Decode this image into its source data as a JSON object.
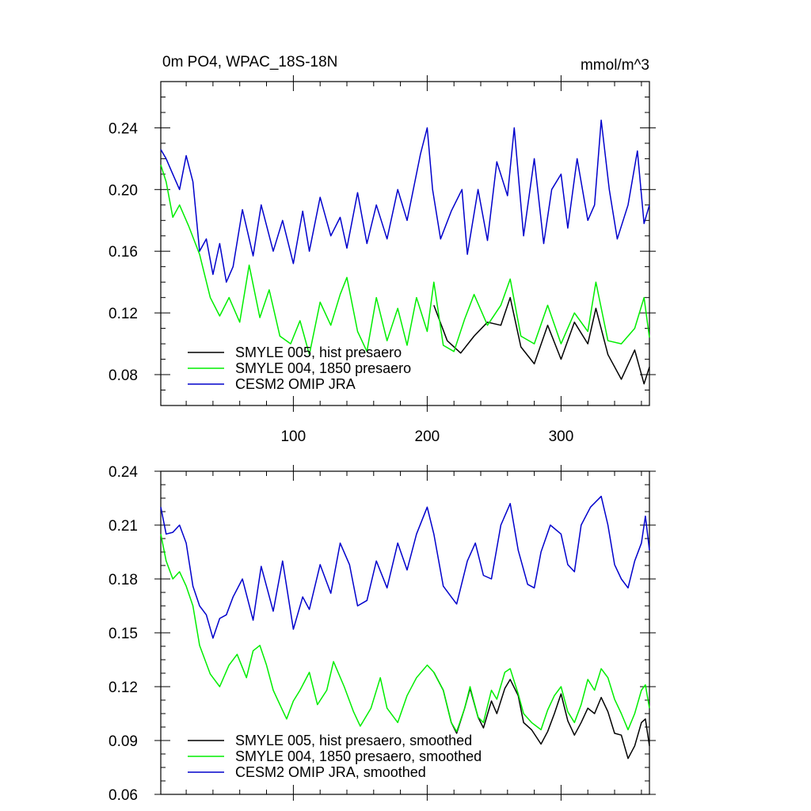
{
  "colors": {
    "black": "#000000",
    "green": "#00ee00",
    "blue": "#0000cc"
  },
  "chart_data": [
    {
      "type": "line",
      "title_left": "0m PO4, WPAC_18S-18N",
      "title_right": "mmol/m^3",
      "xlim": [
        1,
        366
      ],
      "ylim": [
        0.06,
        0.27
      ],
      "xticks": [
        100,
        200,
        300
      ],
      "xtick_labels": [
        "100",
        "200",
        "300"
      ],
      "yticks": [
        0.08,
        0.12,
        0.16,
        0.2,
        0.24
      ],
      "ytick_labels": [
        "0.08",
        "0.12",
        "0.16",
        "0.20",
        "0.24"
      ],
      "legend_position": "bottom-left",
      "series": [
        {
          "name": "SMYLE 005, hist presaero",
          "color": "#000000",
          "x": [
            205,
            215,
            225,
            235,
            245,
            255,
            262,
            270,
            280,
            290,
            300,
            310,
            320,
            326,
            335,
            345,
            355,
            362,
            366
          ],
          "values": [
            0.125,
            0.102,
            0.094,
            0.105,
            0.114,
            0.112,
            0.13,
            0.098,
            0.087,
            0.112,
            0.09,
            0.114,
            0.1,
            0.123,
            0.093,
            0.077,
            0.096,
            0.074,
            0.085
          ]
        },
        {
          "name": "SMYLE 004, 1850 presaero",
          "color": "#00ee00",
          "x": [
            1,
            5,
            10,
            15,
            22,
            30,
            38,
            45,
            52,
            60,
            67,
            75,
            82,
            90,
            98,
            105,
            112,
            120,
            128,
            135,
            140,
            148,
            155,
            162,
            170,
            178,
            185,
            192,
            200,
            205,
            212,
            220,
            228,
            235,
            245,
            255,
            262,
            270,
            280,
            290,
            300,
            310,
            320,
            326,
            335,
            345,
            355,
            362,
            366
          ],
          "values": [
            0.216,
            0.205,
            0.182,
            0.19,
            0.176,
            0.158,
            0.13,
            0.118,
            0.13,
            0.114,
            0.151,
            0.117,
            0.135,
            0.105,
            0.1,
            0.115,
            0.093,
            0.127,
            0.112,
            0.132,
            0.143,
            0.108,
            0.095,
            0.13,
            0.102,
            0.123,
            0.099,
            0.13,
            0.108,
            0.14,
            0.099,
            0.095,
            0.116,
            0.132,
            0.112,
            0.125,
            0.142,
            0.105,
            0.1,
            0.125,
            0.1,
            0.12,
            0.108,
            0.14,
            0.102,
            0.1,
            0.11,
            0.13,
            0.104
          ]
        },
        {
          "name": "CESM2 OMIP JRA",
          "color": "#0000cc",
          "x": [
            1,
            5,
            10,
            15,
            20,
            25,
            30,
            35,
            40,
            45,
            50,
            55,
            62,
            70,
            76,
            85,
            92,
            100,
            107,
            112,
            120,
            128,
            135,
            140,
            148,
            155,
            162,
            170,
            178,
            185,
            195,
            200,
            204,
            210,
            218,
            226,
            230,
            238,
            245,
            252,
            260,
            265,
            272,
            280,
            287,
            293,
            300,
            305,
            312,
            320,
            325,
            330,
            336,
            342,
            350,
            357,
            362,
            366
          ],
          "values": [
            0.226,
            0.22,
            0.21,
            0.2,
            0.222,
            0.205,
            0.16,
            0.168,
            0.145,
            0.165,
            0.14,
            0.15,
            0.187,
            0.157,
            0.19,
            0.16,
            0.18,
            0.152,
            0.186,
            0.16,
            0.195,
            0.17,
            0.182,
            0.162,
            0.198,
            0.165,
            0.19,
            0.168,
            0.2,
            0.18,
            0.223,
            0.24,
            0.2,
            0.168,
            0.186,
            0.2,
            0.158,
            0.2,
            0.167,
            0.218,
            0.196,
            0.24,
            0.17,
            0.22,
            0.165,
            0.2,
            0.21,
            0.175,
            0.22,
            0.18,
            0.19,
            0.245,
            0.2,
            0.168,
            0.19,
            0.225,
            0.178,
            0.19
          ]
        }
      ]
    },
    {
      "type": "line",
      "title_left": "",
      "title_right": "",
      "xlim": [
        1,
        366
      ],
      "ylim": [
        0.06,
        0.24
      ],
      "xticks": [
        100,
        200,
        300
      ],
      "xtick_labels": [],
      "yticks": [
        0.06,
        0.09,
        0.12,
        0.15,
        0.18,
        0.21,
        0.24
      ],
      "ytick_labels": [
        "0.06",
        "0.09",
        "0.12",
        "0.15",
        "0.18",
        "0.21",
        "0.24"
      ],
      "legend_position": "bottom-left",
      "series": [
        {
          "name": "SMYLE 005, hist presaero, smoothed",
          "color": "#000000",
          "x": [
            205,
            212,
            218,
            222,
            228,
            232,
            238,
            242,
            248,
            252,
            258,
            262,
            268,
            272,
            278,
            285,
            290,
            295,
            300,
            305,
            310,
            315,
            320,
            325,
            330,
            335,
            340,
            345,
            350,
            355,
            360,
            363,
            366
          ],
          "values": [
            0.128,
            0.118,
            0.1,
            0.094,
            0.108,
            0.119,
            0.103,
            0.097,
            0.112,
            0.105,
            0.119,
            0.124,
            0.115,
            0.1,
            0.096,
            0.088,
            0.095,
            0.105,
            0.116,
            0.101,
            0.093,
            0.1,
            0.108,
            0.105,
            0.114,
            0.106,
            0.094,
            0.093,
            0.08,
            0.087,
            0.1,
            0.102,
            0.087
          ]
        },
        {
          "name": "SMYLE 004, 1850 presaero, smoothed",
          "color": "#00ee00",
          "x": [
            1,
            5,
            10,
            15,
            20,
            25,
            30,
            38,
            45,
            52,
            58,
            65,
            70,
            75,
            80,
            85,
            90,
            95,
            100,
            105,
            112,
            118,
            125,
            130,
            138,
            145,
            150,
            158,
            165,
            170,
            178,
            185,
            192,
            200,
            205,
            212,
            218,
            222,
            228,
            232,
            238,
            242,
            248,
            252,
            258,
            262,
            268,
            272,
            278,
            285,
            290,
            295,
            300,
            305,
            310,
            315,
            320,
            325,
            330,
            335,
            340,
            345,
            350,
            355,
            360,
            363,
            366
          ],
          "values": [
            0.205,
            0.19,
            0.18,
            0.184,
            0.176,
            0.165,
            0.143,
            0.127,
            0.12,
            0.132,
            0.138,
            0.125,
            0.14,
            0.143,
            0.132,
            0.118,
            0.11,
            0.102,
            0.112,
            0.118,
            0.128,
            0.11,
            0.118,
            0.134,
            0.12,
            0.106,
            0.098,
            0.108,
            0.125,
            0.108,
            0.1,
            0.115,
            0.125,
            0.132,
            0.128,
            0.118,
            0.1,
            0.095,
            0.108,
            0.12,
            0.103,
            0.1,
            0.118,
            0.113,
            0.128,
            0.13,
            0.116,
            0.105,
            0.1,
            0.096,
            0.107,
            0.115,
            0.12,
            0.106,
            0.1,
            0.11,
            0.124,
            0.118,
            0.13,
            0.125,
            0.113,
            0.105,
            0.096,
            0.105,
            0.118,
            0.121,
            0.108
          ]
        },
        {
          "name": "CESM2 OMIP JRA, smoothed",
          "color": "#0000cc",
          "x": [
            1,
            5,
            10,
            15,
            20,
            25,
            30,
            35,
            40,
            45,
            50,
            55,
            62,
            70,
            76,
            85,
            92,
            100,
            107,
            112,
            120,
            128,
            135,
            142,
            148,
            155,
            162,
            170,
            178,
            185,
            192,
            200,
            205,
            212,
            218,
            222,
            230,
            236,
            242,
            248,
            255,
            262,
            268,
            275,
            280,
            285,
            292,
            300,
            305,
            310,
            315,
            322,
            330,
            335,
            340,
            345,
            350,
            355,
            360,
            363,
            366
          ],
          "values": [
            0.22,
            0.205,
            0.206,
            0.21,
            0.2,
            0.176,
            0.165,
            0.16,
            0.147,
            0.158,
            0.16,
            0.17,
            0.18,
            0.157,
            0.187,
            0.162,
            0.19,
            0.152,
            0.17,
            0.163,
            0.188,
            0.172,
            0.2,
            0.188,
            0.165,
            0.168,
            0.19,
            0.175,
            0.2,
            0.185,
            0.205,
            0.22,
            0.205,
            0.176,
            0.17,
            0.166,
            0.19,
            0.2,
            0.182,
            0.18,
            0.21,
            0.222,
            0.196,
            0.177,
            0.175,
            0.195,
            0.21,
            0.205,
            0.188,
            0.184,
            0.21,
            0.22,
            0.226,
            0.21,
            0.188,
            0.18,
            0.175,
            0.19,
            0.2,
            0.215,
            0.196
          ]
        }
      ]
    }
  ]
}
